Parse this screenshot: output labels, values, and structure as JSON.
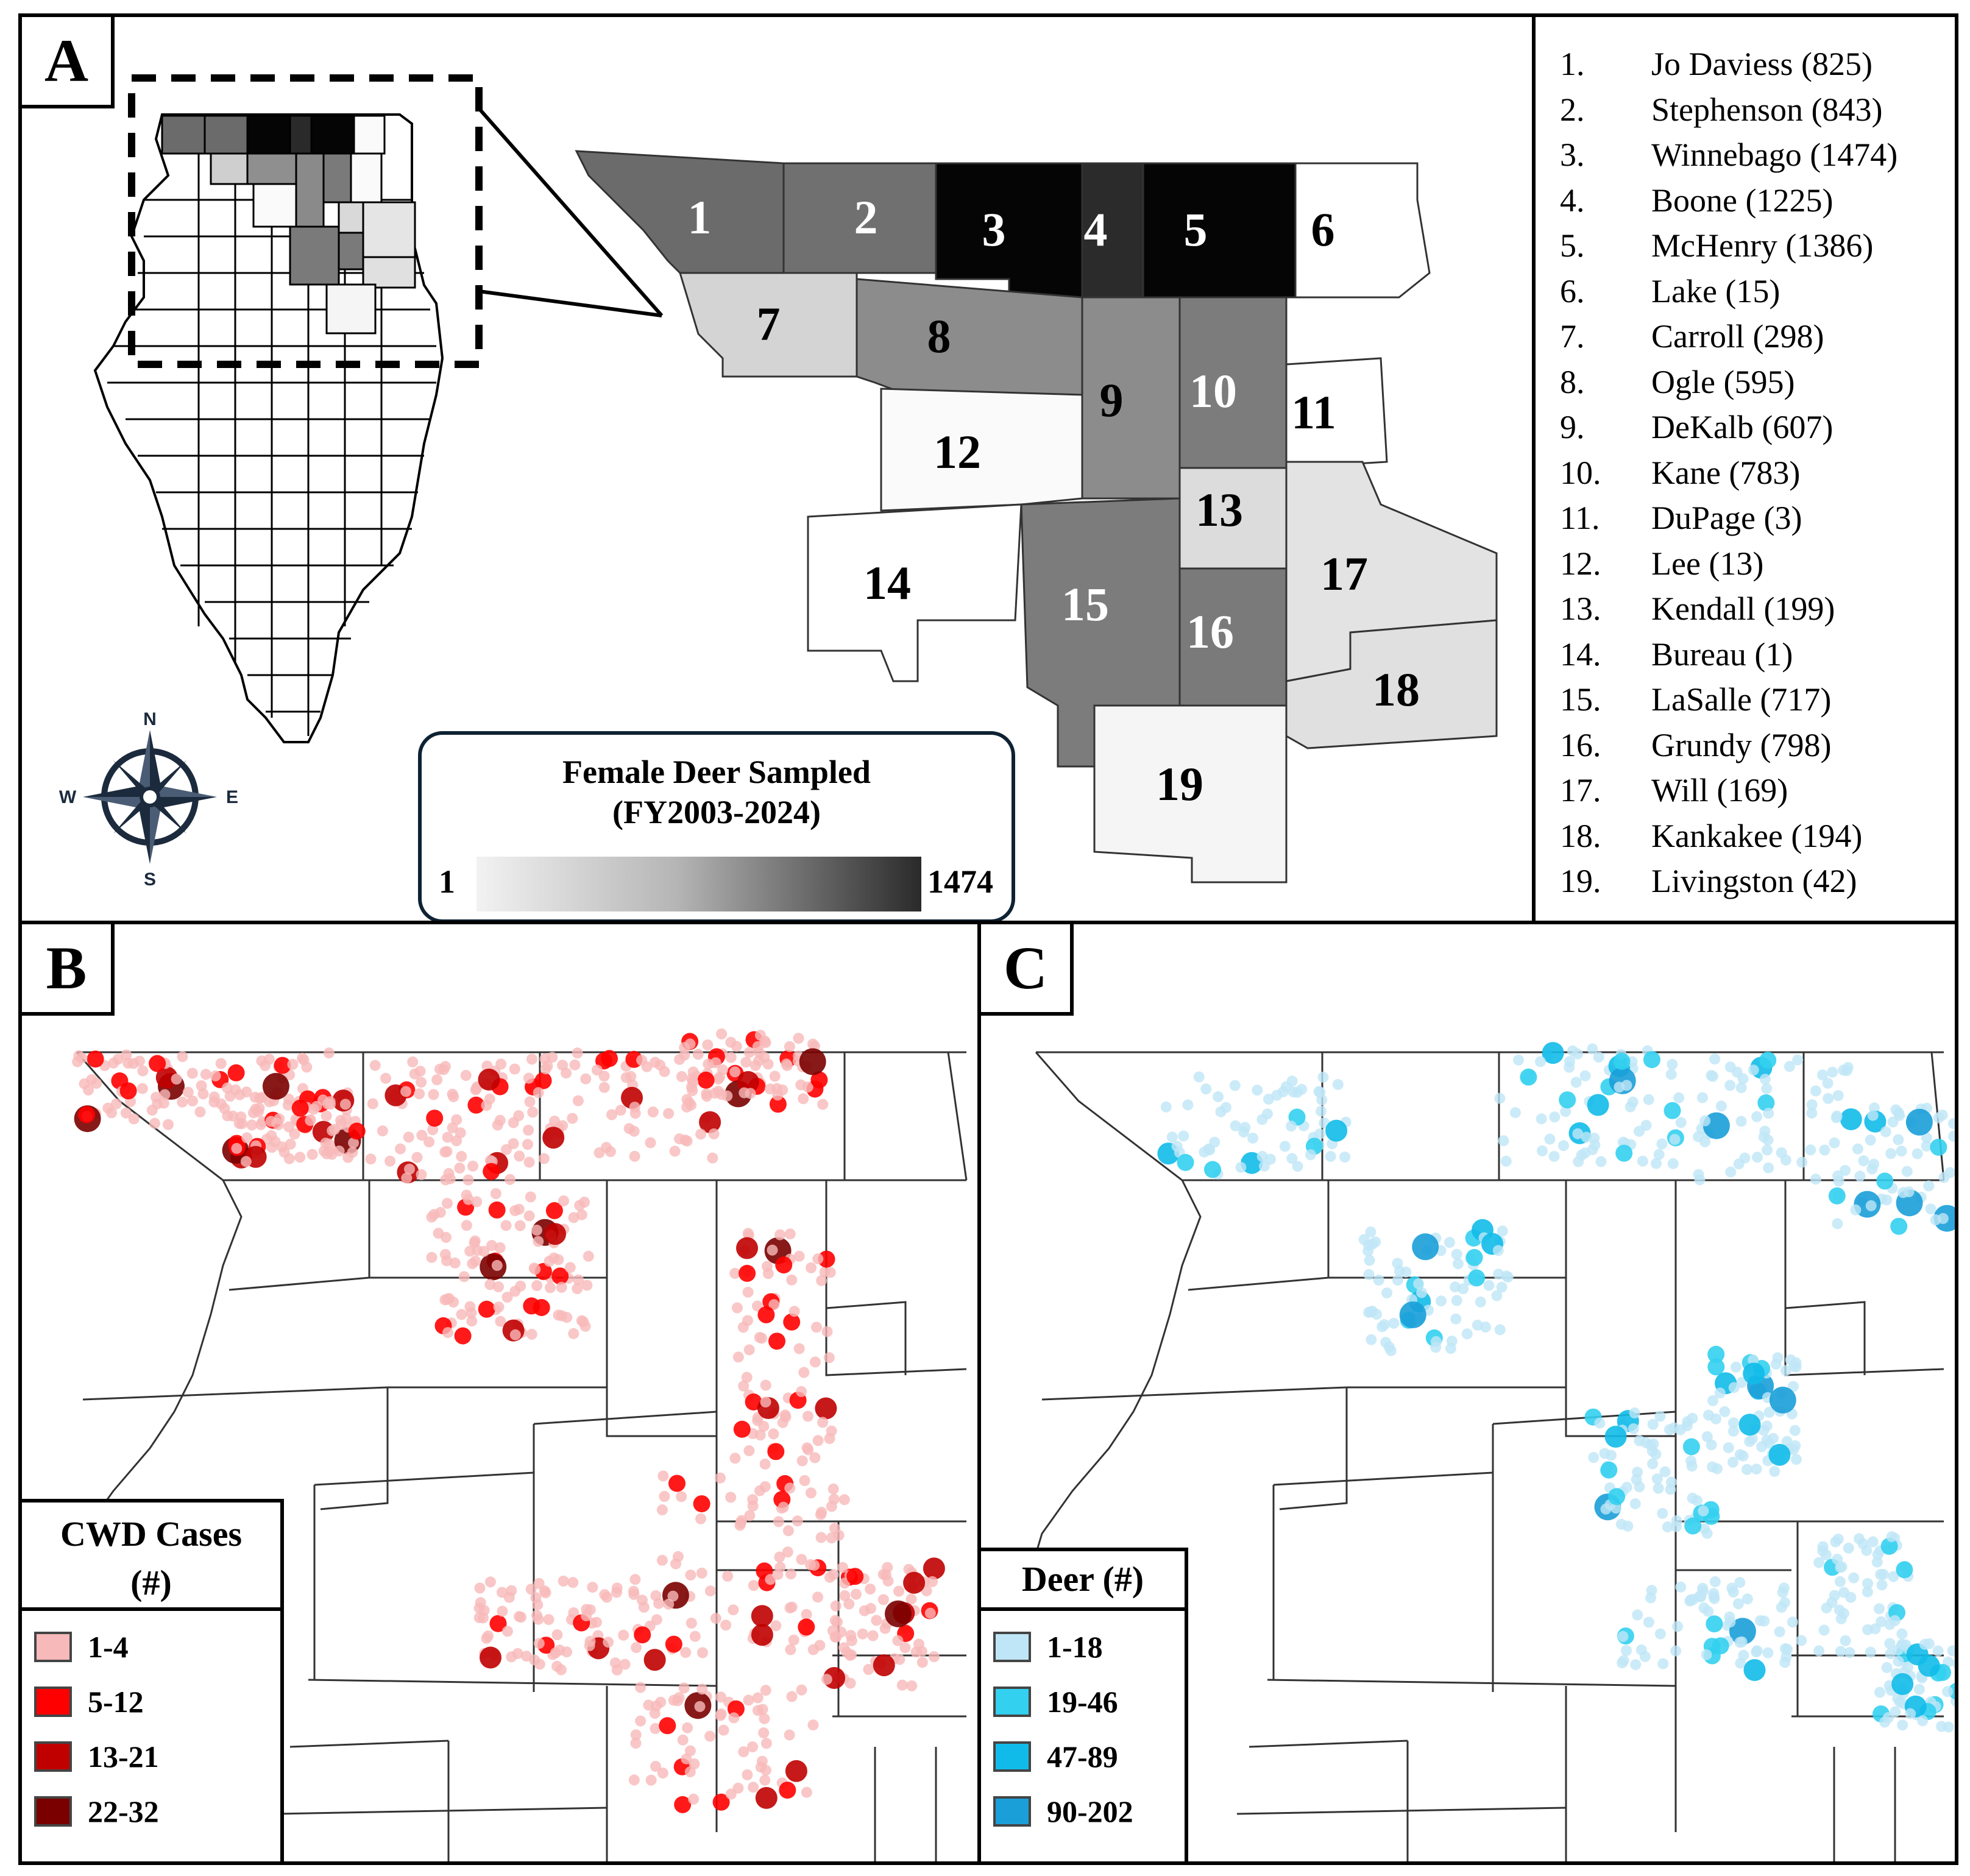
{
  "panel_a": {
    "letter": "A",
    "scale_title_line1": "Female Deer Sampled",
    "scale_title_line2": "(FY2003-2024)",
    "scale_min": "1",
    "scale_max": "1474",
    "compass": {
      "n": "N",
      "s": "S",
      "e": "E",
      "w": "W"
    },
    "county_labels": [
      "1",
      "2",
      "3",
      "4",
      "5",
      "6",
      "7",
      "8",
      "9",
      "10",
      "11",
      "12",
      "13",
      "14",
      "15",
      "16",
      "17",
      "18",
      "19"
    ]
  },
  "counties": [
    {
      "num": "1.",
      "name": "Jo Daviess (825)",
      "value": 825
    },
    {
      "num": "2.",
      "name": "Stephenson (843)",
      "value": 843
    },
    {
      "num": "3.",
      "name": "Winnebago (1474)",
      "value": 1474
    },
    {
      "num": "4.",
      "name": "Boone (1225)",
      "value": 1225
    },
    {
      "num": "5.",
      "name": "McHenry (1386)",
      "value": 1386
    },
    {
      "num": "6.",
      "name": "Lake (15)",
      "value": 15
    },
    {
      "num": "7.",
      "name": "Carroll (298)",
      "value": 298
    },
    {
      "num": "8.",
      "name": "Ogle (595)",
      "value": 595
    },
    {
      "num": "9.",
      "name": "DeKalb (607)",
      "value": 607
    },
    {
      "num": "10.",
      "name": "Kane (783)",
      "value": 783
    },
    {
      "num": "11.",
      "name": "DuPage (3)",
      "value": 3
    },
    {
      "num": "12.",
      "name": "Lee (13)",
      "value": 13
    },
    {
      "num": "13.",
      "name": "Kendall (199)",
      "value": 199
    },
    {
      "num": "14.",
      "name": "Bureau (1)",
      "value": 1
    },
    {
      "num": "15.",
      "name": "LaSalle (717)",
      "value": 717
    },
    {
      "num": "16.",
      "name": "Grundy (798)",
      "value": 798
    },
    {
      "num": "17.",
      "name": "Will (169)",
      "value": 169
    },
    {
      "num": "18.",
      "name": "Kankakee (194)",
      "value": 194
    },
    {
      "num": "19.",
      "name": "Livingston (42)",
      "value": 42
    }
  ],
  "panel_b": {
    "letter": "B",
    "legend_title_line1": "CWD Cases",
    "legend_title_line2": "(#)",
    "classes": [
      {
        "label": "1-4",
        "color": "#f7b9b9"
      },
      {
        "label": "5-12",
        "color": "#ff0000"
      },
      {
        "label": "13-21",
        "color": "#c00000"
      },
      {
        "label": "22-32",
        "color": "#7a0000"
      }
    ]
  },
  "panel_c": {
    "letter": "C",
    "legend_title": "Deer (#)",
    "classes": [
      {
        "label": "1-18",
        "color": "#bfe6f6"
      },
      {
        "label": "19-46",
        "color": "#33d0f0"
      },
      {
        "label": "47-89",
        "color": "#11bbe9"
      },
      {
        "label": "90-202",
        "color": "#1a9fd8"
      }
    ]
  }
}
